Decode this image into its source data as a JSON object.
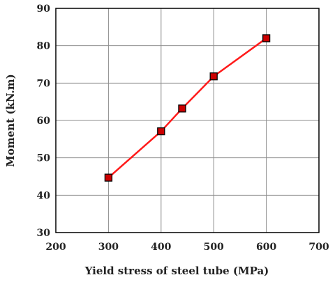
{
  "chart_data": {
    "type": "line",
    "xlabel": "Yield stress of steel tube (MPa)",
    "ylabel": "Moment (kN.m)",
    "xlim": [
      200,
      700
    ],
    "ylim": [
      30,
      90
    ],
    "x_ticks": [
      200,
      300,
      400,
      500,
      600,
      700
    ],
    "y_ticks": [
      30,
      40,
      50,
      60,
      70,
      80,
      90
    ],
    "grid": true,
    "legend": "none",
    "series": [
      {
        "x": [
          300,
          400,
          440,
          500,
          600
        ],
        "y": [
          44.7,
          57.1,
          63.2,
          71.8,
          82.0
        ],
        "line_color": "#ff1a1a",
        "marker": "square",
        "marker_fill": "#cc0000",
        "marker_edge": "#000000"
      }
    ]
  }
}
